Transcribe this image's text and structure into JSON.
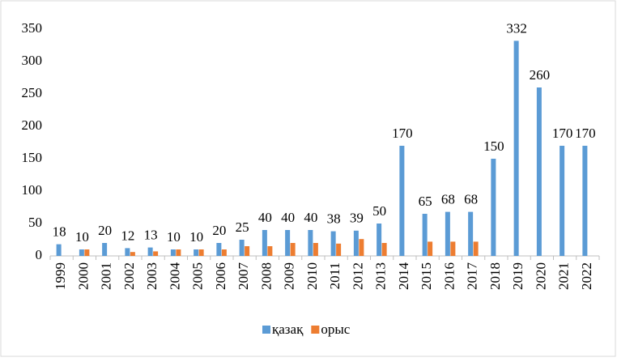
{
  "chart_data": {
    "type": "bar",
    "categories": [
      "1999",
      "2000",
      "2001",
      "2002",
      "2003",
      "2004",
      "2005",
      "2006",
      "2007",
      "2008",
      "2009",
      "2010",
      "2011",
      "2012",
      "2013",
      "2014",
      "2015",
      "2016",
      "2017",
      "2018",
      "2019",
      "2020",
      "2021",
      "2022"
    ],
    "series": [
      {
        "name": "қазақ",
        "color": "#5b9bd5",
        "values": [
          18,
          10,
          20,
          12,
          13,
          10,
          10,
          20,
          25,
          40,
          40,
          40,
          38,
          39,
          50,
          170,
          65,
          68,
          68,
          150,
          332,
          260,
          170,
          170
        ]
      },
      {
        "name": "орыс",
        "color": "#ed7d31",
        "values": [
          0,
          10,
          0,
          6,
          7,
          10,
          10,
          10,
          15,
          15,
          20,
          20,
          19,
          26,
          20,
          0,
          22,
          22,
          22,
          0,
          0,
          0,
          0,
          0
        ]
      }
    ],
    "data_labels_series": 0,
    "ylim": [
      0,
      350
    ],
    "yticks": [
      0,
      50,
      100,
      150,
      200,
      250,
      300,
      350
    ],
    "grid": false,
    "legend": "bottom"
  }
}
